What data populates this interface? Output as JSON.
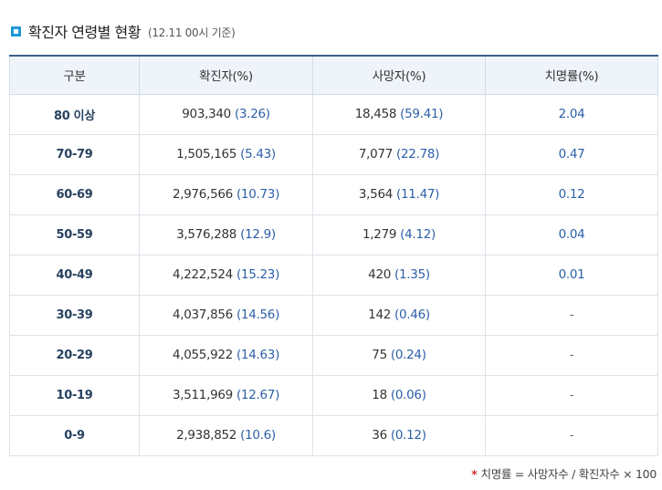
{
  "header": {
    "title": "확진자 연령별 현황",
    "note": "(12.11 00시 기준)"
  },
  "table": {
    "columns": [
      "구분",
      "확진자(%)",
      "사망자(%)",
      "치명률(%)"
    ],
    "rows": [
      {
        "age": "80 이상",
        "cases": "903,340",
        "cases_pct": "(3.26)",
        "deaths": "18,458",
        "deaths_pct": "(59.41)",
        "rate": "2.04"
      },
      {
        "age": "70-79",
        "cases": "1,505,165",
        "cases_pct": "(5.43)",
        "deaths": "7,077",
        "deaths_pct": "(22.78)",
        "rate": "0.47"
      },
      {
        "age": "60-69",
        "cases": "2,976,566",
        "cases_pct": "(10.73)",
        "deaths": "3,564",
        "deaths_pct": "(11.47)",
        "rate": "0.12"
      },
      {
        "age": "50-59",
        "cases": "3,576,288",
        "cases_pct": "(12.9)",
        "deaths": "1,279",
        "deaths_pct": "(4.12)",
        "rate": "0.04"
      },
      {
        "age": "40-49",
        "cases": "4,222,524",
        "cases_pct": "(15.23)",
        "deaths": "420",
        "deaths_pct": "(1.35)",
        "rate": "0.01"
      },
      {
        "age": "30-39",
        "cases": "4,037,856",
        "cases_pct": "(14.56)",
        "deaths": "142",
        "deaths_pct": "(0.46)",
        "rate": "-"
      },
      {
        "age": "20-29",
        "cases": "4,055,922",
        "cases_pct": "(14.63)",
        "deaths": "75",
        "deaths_pct": "(0.24)",
        "rate": "-"
      },
      {
        "age": "10-19",
        "cases": "3,511,969",
        "cases_pct": "(12.67)",
        "deaths": "18",
        "deaths_pct": "(0.06)",
        "rate": "-"
      },
      {
        "age": "0-9",
        "cases": "2,938,852",
        "cases_pct": "(10.6)",
        "deaths": "36",
        "deaths_pct": "(0.12)",
        "rate": "-"
      }
    ]
  },
  "footnote": {
    "star": "*",
    "text": "치명률 = 사망자수 / 확진자수 × 100"
  },
  "colors": {
    "accent": "#1e9ad6",
    "header_border": "#3b5f8a",
    "header_bg": "#eef4fa",
    "value_blue": "#2c5fa8",
    "star_red": "#d0352b"
  }
}
